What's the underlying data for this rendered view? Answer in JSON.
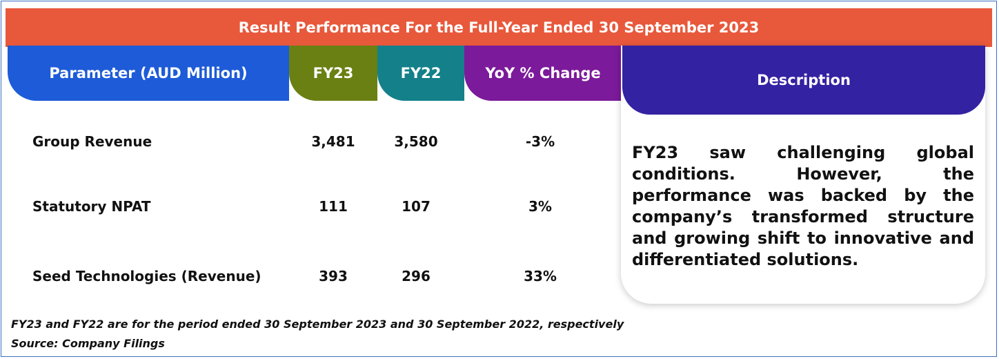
{
  "title": "Result Performance For the Full-Year Ended 30 September 2023",
  "colors": {
    "banner": "#e8583b",
    "parameter_header": "#1d5bd8",
    "fy23_header": "#6a8012",
    "fy22_header": "#13808a",
    "yoy_header": "#7b1a9a",
    "description_header": "#3322a2"
  },
  "table": {
    "headers": {
      "parameter": "Parameter (AUD Million)",
      "fy23": "FY23",
      "fy22": "FY22",
      "yoy": "YoY % Change",
      "description": "Description"
    },
    "rows": [
      {
        "parameter": "Group Revenue",
        "fy23": "3,481",
        "fy22": "3,580",
        "yoy": "-3%"
      },
      {
        "parameter": "Statutory NPAT",
        "fy23": "111",
        "fy22": "107",
        "yoy": "3%"
      },
      {
        "parameter": "Seed Technologies (Revenue)",
        "fy23": "393",
        "fy22": "296",
        "yoy": "33%"
      }
    ]
  },
  "description": "FY23 saw challenging global conditions. However, the performance was backed by the company’s transformed structure and growing shift to innovative and differentiated solutions.",
  "footnotes": {
    "period_note": "FY23 and FY22 are for the period ended 30 September 2023 and 30 September 2022, respectively",
    "source": "Source: Company Filings"
  }
}
